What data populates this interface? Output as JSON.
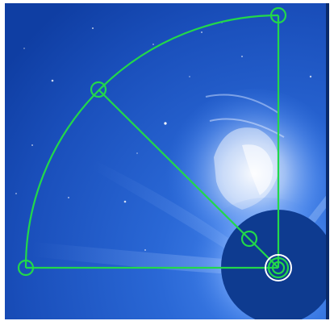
{
  "image": {
    "subject": "coronagraph-cme",
    "colors": {
      "sky_dark": "#0d3a9a",
      "sky_mid": "#1e58c8",
      "sky_light": "#3f7ee6",
      "occulter": "#0e3b90",
      "cme_white": "#e9f2ff",
      "tool_green": "#22d84a",
      "sun_marker": "#ffffff"
    }
  },
  "measurement_tool": {
    "type": "quadrant-angle-tool",
    "handles": [
      {
        "id": "sun-center"
      },
      {
        "id": "top"
      },
      {
        "id": "left"
      },
      {
        "id": "angle-outer"
      },
      {
        "id": "angle-inner"
      }
    ]
  }
}
